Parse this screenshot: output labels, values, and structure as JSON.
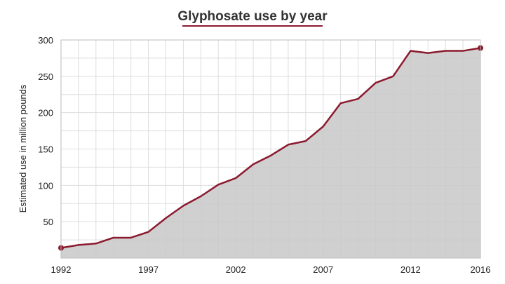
{
  "chart_data": {
    "type": "area",
    "title": "Glyphosate use by year",
    "xlabel": "",
    "ylabel": "Estimated use in million pounds",
    "x": [
      1992,
      1993,
      1994,
      1995,
      1996,
      1997,
      1998,
      1999,
      2000,
      2001,
      2002,
      2003,
      2004,
      2005,
      2006,
      2007,
      2008,
      2009,
      2010,
      2011,
      2012,
      2013,
      2014,
      2015,
      2016
    ],
    "series": [
      {
        "values": [
          14,
          18,
          20,
          28,
          28,
          36,
          55,
          72,
          85,
          101,
          110,
          129,
          141,
          156,
          161,
          181,
          213,
          219,
          241,
          250,
          285,
          282,
          285,
          285,
          289
        ]
      }
    ],
    "xlim": [
      1992,
      2016
    ],
    "ylim": [
      0,
      300
    ],
    "x_ticks": [
      1992,
      1997,
      2002,
      2007,
      2012,
      2016
    ],
    "y_ticks": [
      50,
      100,
      150,
      200,
      250,
      300
    ],
    "grid": true,
    "colors": {
      "line": "#8b1a2e",
      "fill": "#c8c8c9",
      "title_underline": "#8b1a2e"
    }
  }
}
